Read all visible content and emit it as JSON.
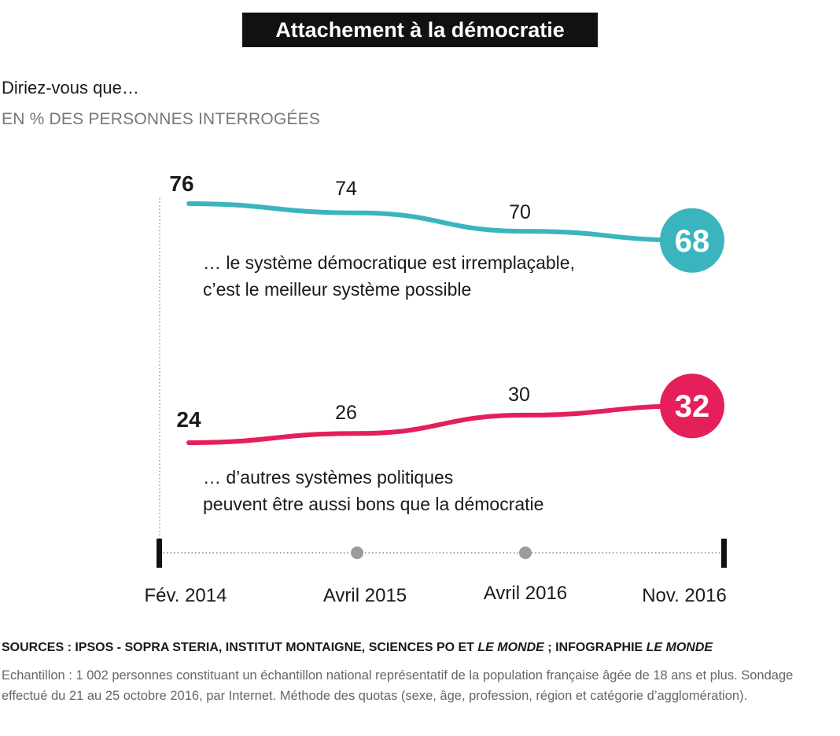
{
  "header": {
    "title": "Attachement à la démocratie",
    "question": "Diriez-vous que…",
    "unit": "EN % DES PERSONNES INTERROGÉES"
  },
  "chart_data": {
    "type": "line",
    "x": [
      "Fév. 2014",
      "Avril 2015",
      "Avril 2016",
      "Nov. 2016"
    ],
    "ylim": [
      0,
      100
    ],
    "grid": false,
    "series": [
      {
        "key": "irremplacable",
        "name_lines": [
          "… le système démocratique est irremplaçable,",
          "c’est le meilleur système possible"
        ],
        "values": [
          76,
          74,
          70,
          68
        ],
        "color": "#3ab5bd"
      },
      {
        "key": "autres",
        "name_lines": [
          "… d’autres systèmes politiques",
          "peuvent être aussi bons que la démocratie"
        ],
        "values": [
          24,
          26,
          30,
          32
        ],
        "color": "#e51f5a"
      }
    ]
  },
  "footer": {
    "sources_parts": [
      "SOURCES : IPSOS - SOPRA STERIA, INSTITUT MONTAIGNE, SCIENCES PO ET ",
      "LE MONDE",
      " ; INFOGRAPHIE ",
      "LE MONDE"
    ],
    "note": "Echantillon : 1 002 personnes  constituant un échantillon national représentatif de la population française âgée de 18 ans et plus. Sondage effectué du 21 au 25 octobre 2016, par Internet. Méthode des quotas (sexe, âge, profession, région et catégorie d’agglomération)."
  }
}
